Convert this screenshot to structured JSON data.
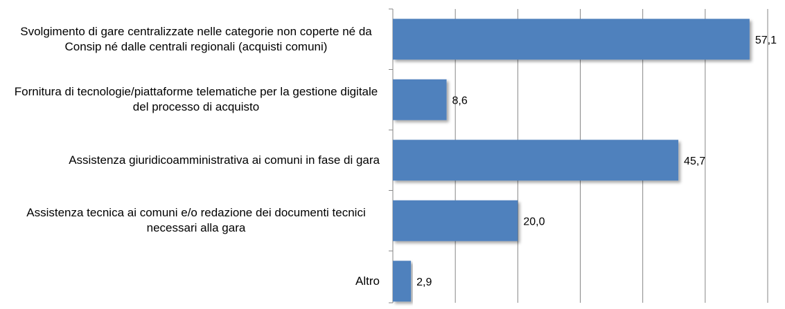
{
  "chart_data": {
    "type": "bar",
    "orientation": "horizontal",
    "categories": [
      "Svolgimento di gare centralizzate nelle categorie non coperte né da Consip né dalle centrali regionali (acquisti comuni)",
      "Fornitura di tecnologie/piattaforme telematiche per la gestione digitale del processo di acquisto",
      "Assistenza giuridicoamministrativa ai comuni in fase di gara",
      "Assistenza tecnica ai comuni e/o redazione dei documenti tecnici necessari alla gara",
      "Altro"
    ],
    "values": [
      57.1,
      8.6,
      45.7,
      20.0,
      2.9
    ],
    "value_labels": [
      "57,1",
      "8,6",
      "45,7",
      "20,0",
      "2,9"
    ],
    "color": "#4f81bd",
    "xlim": [
      0,
      60
    ],
    "xticks": [
      0,
      10,
      20,
      30,
      40,
      50,
      60
    ],
    "grid": true
  }
}
